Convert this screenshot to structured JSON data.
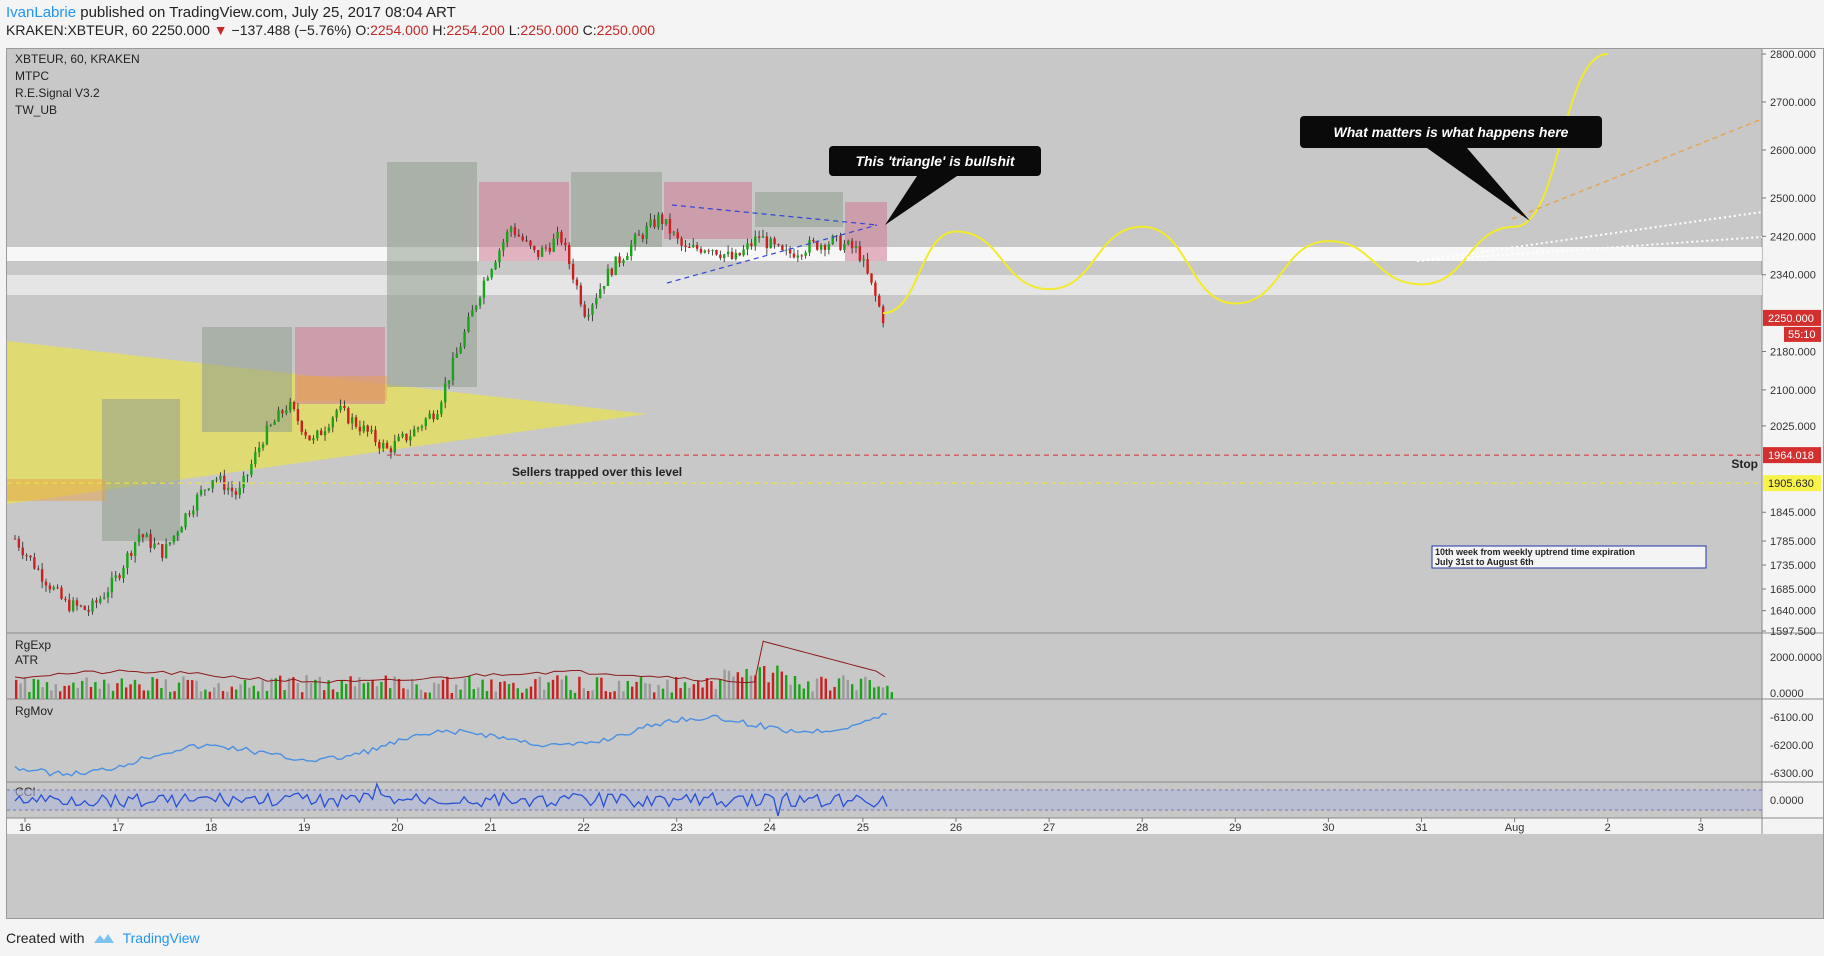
{
  "header": {
    "author": "IvanLabrie",
    "published": "published on TradingView.com, July 25, 2017 08:04 ART",
    "symbol_line_prefix": "KRAKEN:XBTEUR, 60",
    "last": "2250.000",
    "change": "−137.488 (−5.76%)",
    "o_label": "O:",
    "o_value": "2254.000",
    "h_label": "H:",
    "h_value": "2254.200",
    "l_label": "L:",
    "l_value": "2250.000",
    "c_label": "C:",
    "c_value": "2250.000"
  },
  "footer": {
    "created_with": "Created with",
    "brand": "TradingView"
  },
  "colors": {
    "pane_bg": "#c8c8c8",
    "up": "#1aa31a",
    "down": "#cc1f1f",
    "yellow": "#f2ea2a",
    "blue_line": "#4a90e2",
    "price_tag_red": "#d32f2f",
    "price_tag_yellow": "#f7f34a"
  },
  "chart_data": {
    "type": "candlestick",
    "symbol": "XBTEUR",
    "interval": "60",
    "exchange": "KRAKEN",
    "legend": [
      "XBTEUR, 60, KRAKEN",
      "MTPC",
      "R.E.Signal V3.2",
      "TW_UB"
    ],
    "x_ticks": [
      "16",
      "17",
      "18",
      "19",
      "20",
      "21",
      "22",
      "23",
      "24",
      "25",
      "26",
      "27",
      "28",
      "29",
      "30",
      "31",
      "Aug",
      "2",
      "3"
    ],
    "price_ticks": [
      "2800.000",
      "2700.000",
      "2600.000",
      "2500.000",
      "2420.000",
      "2340.000",
      "2250.000",
      "2180.000",
      "2100.000",
      "2025.000",
      "1964.018",
      "1905.630",
      "1845.000",
      "1785.000",
      "1735.000",
      "1685.000",
      "1640.000",
      "1597.500"
    ],
    "last_price": {
      "value": "2250.000",
      "countdown": "55:10"
    },
    "stop": {
      "label": "Stop",
      "value": "1964.018"
    },
    "level": {
      "value": "1905.630",
      "label": "Sellers trapped over this level"
    },
    "close_path": [
      {
        "date": "16",
        "close": 1790
      },
      {
        "date": "16",
        "close": 1720
      },
      {
        "date": "16",
        "close": 1655
      },
      {
        "date": "16",
        "close": 1640
      },
      {
        "date": "17",
        "close": 1700
      },
      {
        "date": "17",
        "close": 1800
      },
      {
        "date": "17",
        "close": 1760
      },
      {
        "date": "17",
        "close": 1850
      },
      {
        "date": "18",
        "close": 1920
      },
      {
        "date": "18",
        "close": 1880
      },
      {
        "date": "18",
        "close": 2000
      },
      {
        "date": "18",
        "close": 2070
      },
      {
        "date": "19",
        "close": 1990
      },
      {
        "date": "19",
        "close": 2060
      },
      {
        "date": "19",
        "close": 2020
      },
      {
        "date": "19",
        "close": 1975
      },
      {
        "date": "20",
        "close": 2010
      },
      {
        "date": "20",
        "close": 2060
      },
      {
        "date": "20",
        "close": 2200
      },
      {
        "date": "20",
        "close": 2340
      },
      {
        "date": "21",
        "close": 2440
      },
      {
        "date": "21",
        "close": 2380
      },
      {
        "date": "21",
        "close": 2420
      },
      {
        "date": "21",
        "close": 2260
      },
      {
        "date": "22",
        "close": 2350
      },
      {
        "date": "22",
        "close": 2410
      },
      {
        "date": "22",
        "close": 2460
      },
      {
        "date": "22",
        "close": 2390
      },
      {
        "date": "23",
        "close": 2400
      },
      {
        "date": "23",
        "close": 2370
      },
      {
        "date": "23",
        "close": 2420
      },
      {
        "date": "24",
        "close": 2380
      },
      {
        "date": "24",
        "close": 2400
      },
      {
        "date": "24",
        "close": 2410
      },
      {
        "date": "25",
        "close": 2390
      },
      {
        "date": "25",
        "close": 2250
      }
    ],
    "projection": {
      "dates": [
        "25",
        "26",
        "27",
        "28",
        "29",
        "30",
        "31",
        "Aug",
        "2"
      ],
      "values": [
        2260,
        2430,
        2310,
        2440,
        2280,
        2410,
        2320,
        2440,
        2800
      ]
    },
    "annotations": [
      "This 'triangle' is bullshit",
      "What matters is what happens here",
      "10th week from weekly uptrend time expiration",
      "July 31st to August 6th"
    ],
    "indicators": {
      "rgexp_atr": {
        "labels": [
          "RgExp",
          "ATR"
        ],
        "ticks": [
          "2000.0000",
          "0.0000"
        ]
      },
      "rgmov": {
        "label": "RgMov",
        "ticks": [
          "-6100.00",
          "-6200.00",
          "-6300.00"
        ]
      },
      "cci": {
        "label": "CCI",
        "ticks": [
          "0.0000"
        ]
      }
    }
  }
}
